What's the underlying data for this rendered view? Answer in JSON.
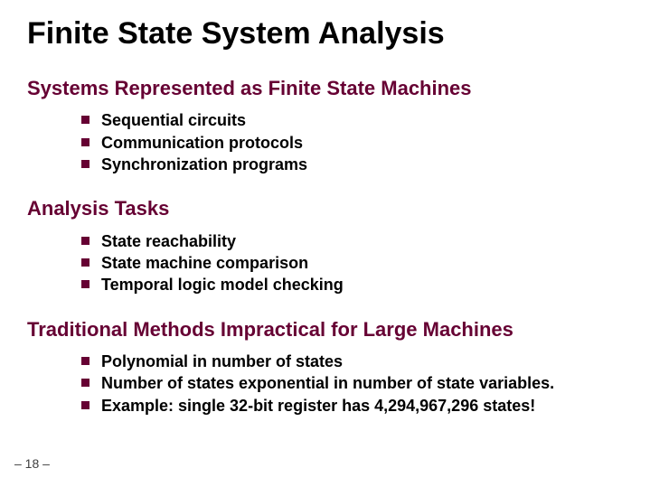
{
  "colors": {
    "heading_color": "#660033",
    "bullet_color": "#660033",
    "title_color": "#000000",
    "body_text_color": "#000000",
    "background": "#ffffff",
    "page_num_color": "#404040"
  },
  "typography": {
    "title_fontsize": 34,
    "heading_fontsize": 22,
    "bullet_fontsize": 18,
    "page_num_fontsize": 14,
    "font_family": "Arial"
  },
  "title": "Finite State System Analysis",
  "sections": [
    {
      "heading": "Systems Represented as Finite State Machines",
      "items": [
        "Sequential circuits",
        "Communication protocols",
        "Synchronization programs"
      ]
    },
    {
      "heading": "Analysis Tasks",
      "items": [
        "State reachability",
        "State machine comparison",
        "Temporal logic model checking"
      ]
    },
    {
      "heading": "Traditional Methods Impractical for Large Machines",
      "items": [
        "Polynomial in number of states",
        "Number of states exponential in number of state variables.",
        "Example: single 32-bit register has 4,294,967,296 states!"
      ]
    }
  ],
  "page_number": "– 18 –"
}
